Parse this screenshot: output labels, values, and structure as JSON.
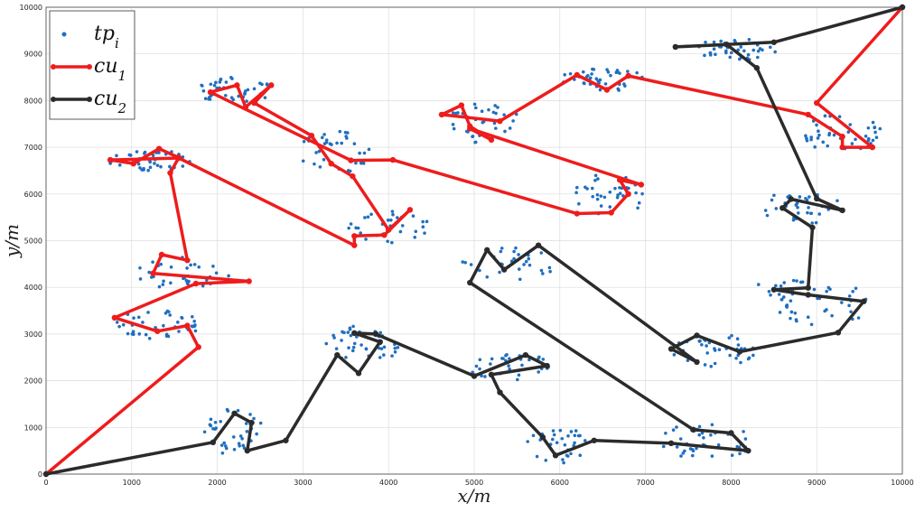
{
  "chart_data": {
    "type": "scatter",
    "xlabel": "x/m",
    "ylabel": "y/m",
    "xlim": [
      0,
      10000
    ],
    "ylim": [
      0,
      10000
    ],
    "xticks": [
      0,
      1000,
      2000,
      3000,
      4000,
      5000,
      6000,
      7000,
      8000,
      9000,
      10000
    ],
    "yticks": [
      0,
      1000,
      2000,
      3000,
      4000,
      5000,
      6000,
      7000,
      8000,
      9000,
      10000
    ],
    "grid": true,
    "legend_position": "top-left",
    "legend": [
      {
        "key": "tp",
        "base": "tp",
        "sub": "i",
        "marker": "dot",
        "color": "#1f6fc0"
      },
      {
        "key": "cu1",
        "base": "cu",
        "sub": "1",
        "marker": "line",
        "color": "#ee1c1c"
      },
      {
        "key": "cu2",
        "base": "cu",
        "sub": "2",
        "marker": "line",
        "color": "#2b2b2b"
      }
    ],
    "clusters": [
      {
        "cx": 2200,
        "cy": 8200,
        "rx": 450,
        "ry": 300,
        "n": 40
      },
      {
        "cx": 3400,
        "cy": 6900,
        "rx": 450,
        "ry": 450,
        "n": 35
      },
      {
        "cx": 4000,
        "cy": 5300,
        "rx": 500,
        "ry": 350,
        "n": 30
      },
      {
        "cx": 5100,
        "cy": 7500,
        "rx": 450,
        "ry": 450,
        "n": 35
      },
      {
        "cx": 6500,
        "cy": 8450,
        "rx": 500,
        "ry": 250,
        "n": 40
      },
      {
        "cx": 6600,
        "cy": 6000,
        "rx": 450,
        "ry": 450,
        "n": 35
      },
      {
        "cx": 1200,
        "cy": 6700,
        "rx": 500,
        "ry": 250,
        "n": 40
      },
      {
        "cx": 1600,
        "cy": 4300,
        "rx": 550,
        "ry": 350,
        "n": 35
      },
      {
        "cx": 1300,
        "cy": 3200,
        "rx": 550,
        "ry": 300,
        "n": 40
      },
      {
        "cx": 2200,
        "cy": 900,
        "rx": 350,
        "ry": 500,
        "n": 35
      },
      {
        "cx": 3700,
        "cy": 2800,
        "rx": 450,
        "ry": 450,
        "n": 40
      },
      {
        "cx": 5400,
        "cy": 2300,
        "rx": 500,
        "ry": 300,
        "n": 35
      },
      {
        "cx": 5400,
        "cy": 4500,
        "rx": 550,
        "ry": 350,
        "n": 30
      },
      {
        "cx": 6000,
        "cy": 600,
        "rx": 400,
        "ry": 400,
        "n": 30
      },
      {
        "cx": 7700,
        "cy": 700,
        "rx": 550,
        "ry": 400,
        "n": 40
      },
      {
        "cx": 7800,
        "cy": 2650,
        "rx": 500,
        "ry": 350,
        "n": 40
      },
      {
        "cx": 9100,
        "cy": 3600,
        "rx": 550,
        "ry": 500,
        "n": 35
      },
      {
        "cx": 8600,
        "cy": 4000,
        "rx": 300,
        "ry": 200,
        "n": 15
      },
      {
        "cx": 8800,
        "cy": 5700,
        "rx": 500,
        "ry": 350,
        "n": 35
      },
      {
        "cx": 9300,
        "cy": 7300,
        "rx": 450,
        "ry": 450,
        "n": 40
      },
      {
        "cx": 8100,
        "cy": 9100,
        "rx": 500,
        "ry": 250,
        "n": 40
      }
    ],
    "series": [
      {
        "name": "cu1",
        "color": "#ee1c1c",
        "points": [
          [
            0,
            0
          ],
          [
            1780,
            2720
          ],
          [
            1650,
            3180
          ],
          [
            1300,
            3060
          ],
          [
            800,
            3350
          ],
          [
            1750,
            4080
          ],
          [
            2370,
            4130
          ],
          [
            1250,
            4300
          ],
          [
            1350,
            4700
          ],
          [
            1650,
            4580
          ],
          [
            1450,
            6450
          ],
          [
            1550,
            6780
          ],
          [
            1320,
            6970
          ],
          [
            1020,
            6650
          ],
          [
            750,
            6730
          ],
          [
            1550,
            6770
          ],
          [
            3600,
            4900
          ],
          [
            3600,
            5100
          ],
          [
            3950,
            5120
          ],
          [
            4250,
            5660
          ],
          [
            4000,
            5230
          ],
          [
            3580,
            6380
          ],
          [
            3330,
            6650
          ],
          [
            3100,
            7250
          ],
          [
            2430,
            7950
          ],
          [
            2630,
            8330
          ],
          [
            2330,
            7860
          ],
          [
            2230,
            8330
          ],
          [
            1920,
            8180
          ],
          [
            3560,
            6720
          ],
          [
            4050,
            6730
          ],
          [
            6200,
            5580
          ],
          [
            6600,
            5600
          ],
          [
            6800,
            6000
          ],
          [
            6700,
            6300
          ],
          [
            6950,
            6200
          ],
          [
            4950,
            7400
          ],
          [
            5200,
            7160
          ],
          [
            4950,
            7450
          ],
          [
            4850,
            7900
          ],
          [
            4620,
            7700
          ],
          [
            5300,
            7560
          ],
          [
            6200,
            8550
          ],
          [
            6550,
            8230
          ],
          [
            6800,
            8530
          ],
          [
            8900,
            7700
          ],
          [
            9300,
            7230
          ],
          [
            9300,
            7000
          ],
          [
            9650,
            7000
          ],
          [
            9000,
            7950
          ],
          [
            10000,
            10000
          ]
        ]
      },
      {
        "name": "cu2",
        "color": "#2b2b2b",
        "points": [
          [
            0,
            0
          ],
          [
            1950,
            680
          ],
          [
            2200,
            1300
          ],
          [
            2400,
            1100
          ],
          [
            2350,
            500
          ],
          [
            2800,
            720
          ],
          [
            3400,
            2550
          ],
          [
            3650,
            2160
          ],
          [
            3900,
            2830
          ],
          [
            3600,
            3020
          ],
          [
            3850,
            3000
          ],
          [
            5000,
            2100
          ],
          [
            5600,
            2550
          ],
          [
            5850,
            2320
          ],
          [
            5200,
            2130
          ],
          [
            5300,
            1750
          ],
          [
            5800,
            790
          ],
          [
            5950,
            400
          ],
          [
            6400,
            720
          ],
          [
            7300,
            660
          ],
          [
            8200,
            500
          ],
          [
            8000,
            880
          ],
          [
            7560,
            950
          ],
          [
            4950,
            4100
          ],
          [
            5150,
            4800
          ],
          [
            5350,
            4380
          ],
          [
            5750,
            4900
          ],
          [
            7600,
            2400
          ],
          [
            7300,
            2680
          ],
          [
            7600,
            2970
          ],
          [
            8100,
            2620
          ],
          [
            9250,
            3030
          ],
          [
            9550,
            3700
          ],
          [
            8900,
            3840
          ],
          [
            8500,
            3950
          ],
          [
            8900,
            3990
          ],
          [
            8950,
            5280
          ],
          [
            8600,
            5700
          ],
          [
            8700,
            5890
          ],
          [
            9300,
            5650
          ],
          [
            9000,
            5900
          ],
          [
            8300,
            8700
          ],
          [
            7950,
            9200
          ],
          [
            7350,
            9150
          ],
          [
            8500,
            9250
          ],
          [
            10000,
            10000
          ]
        ]
      }
    ]
  }
}
